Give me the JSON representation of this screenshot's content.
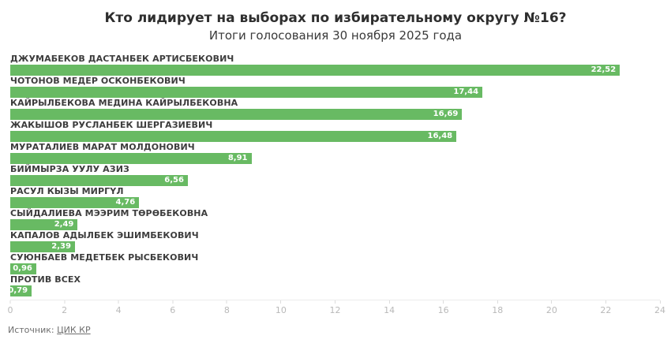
{
  "header": {
    "title": "Кто лидирует на выборах по избирательному округу №16?",
    "subtitle": "Итоги голосования 30 ноября 2025 года"
  },
  "footer": {
    "source_prefix": "Источник:",
    "source_link": "ЦИК КР"
  },
  "colors": {
    "bar": "#68ba63",
    "value_label": "#ffffff",
    "name_label": "#3d3d3d",
    "axis_label": "#b9b9b9"
  },
  "chart_data": {
    "type": "bar",
    "orientation": "horizontal",
    "title": "Кто лидирует на выборах по избирательному округу №16?",
    "subtitle": "Итоги голосования 30 ноября 2025 года",
    "xlabel": "",
    "ylabel": "",
    "xlim": [
      0,
      24
    ],
    "grid": false,
    "x_ticks": [
      0,
      2,
      4,
      6,
      8,
      10,
      12,
      14,
      16,
      18,
      20,
      22,
      24
    ],
    "categories": [
      "ДЖУМАБЕКОВ ДАСТАНБЕК АРТИСБЕКОВИЧ",
      "ЧОТОНОВ МЕДЕР ОСКОНБЕКОВИЧ",
      "КАЙРЫЛБЕКОВА МЕДИНА КАЙРЫЛБЕКОВНА",
      "ЖАКЫШОВ РУСЛАНБЕК ШЕРГАЗИЕВИЧ",
      "МУРАТАЛИЕВ МАРАТ МОЛДОНОВИЧ",
      "БИЙМЫРЗА УУЛУ АЗИЗ",
      "РАСУЛ КЫЗЫ МИРГҮЛ",
      "СЫЙДАЛИЕВА МЭЭРИМ ТӨРӨБЕКОВНА",
      "КАПАЛОВ АДЫЛБЕК ЭШИМБЕКОВИЧ",
      "СУЮНБАЕВ МЕДЕТБЕК РЫСБЕКОВИЧ",
      "ПРОТИВ ВСЕХ"
    ],
    "values": [
      22.52,
      17.44,
      16.69,
      16.48,
      8.91,
      6.56,
      4.76,
      2.49,
      2.39,
      0.96,
      0.79
    ],
    "value_labels": [
      "22,52",
      "17,44",
      "16,69",
      "16,48",
      "8,91",
      "6,56",
      "4,76",
      "2,49",
      "2,39",
      "0,96",
      "0,79"
    ]
  }
}
